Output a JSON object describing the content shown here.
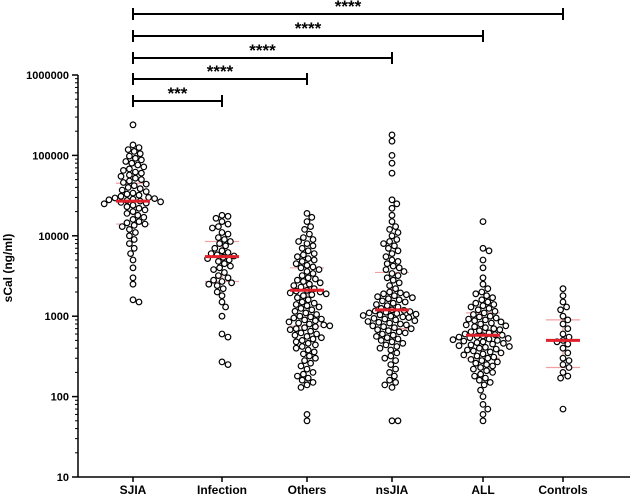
{
  "chart_data": {
    "type": "scatter",
    "ylabel": "sCal (ng/ml)",
    "yscale": "log",
    "ylim": [
      10,
      1000000
    ],
    "yticks": [
      {
        "value": 10,
        "label": "10"
      },
      {
        "value": 100,
        "label": "100"
      },
      {
        "value": 1000,
        "label": "1000"
      },
      {
        "value": 10000,
        "label": "10000"
      },
      {
        "value": 100000,
        "label": "100000"
      },
      {
        "value": 1000000,
        "label": "1000000"
      }
    ],
    "categories": [
      "SJIA",
      "Infection",
      "Others",
      "nsJIA",
      "ALL",
      "Controls"
    ],
    "colors": {
      "points": "#000000",
      "median": "#e0202a",
      "iqr": "#f0a0a0",
      "brackets": "#000000"
    },
    "series": [
      {
        "category": "SJIA",
        "median": 27000,
        "q1": 14000,
        "q3": 45000,
        "values": [
          240000,
          135000,
          125000,
          118000,
          112000,
          105000,
          98000,
          92000,
          88000,
          84000,
          80000,
          76000,
          72000,
          68000,
          65000,
          62000,
          60000,
          57000,
          55000,
          52000,
          50000,
          48000,
          46000,
          44000,
          42000,
          40000,
          38500,
          37000,
          35500,
          34000,
          33000,
          32000,
          31000,
          30000,
          29500,
          29000,
          28500,
          28000,
          27500,
          27000,
          26500,
          26000,
          25500,
          25000,
          24000,
          23000,
          22000,
          21000,
          20000,
          19000,
          18000,
          17000,
          16000,
          15000,
          14500,
          14000,
          13500,
          13000,
          12000,
          11000,
          10000,
          9000,
          8000,
          7000,
          6000,
          5000,
          4000,
          3000,
          2500,
          1600,
          1500
        ]
      },
      {
        "category": "Infection",
        "median": 5500,
        "q1": 2700,
        "q3": 8500,
        "values": [
          18000,
          17500,
          16500,
          15000,
          14000,
          13000,
          12500,
          11000,
          10500,
          9500,
          9000,
          8500,
          8000,
          7500,
          7000,
          6500,
          6200,
          6000,
          5800,
          5600,
          5400,
          5200,
          5000,
          4800,
          4500,
          4200,
          4000,
          3800,
          3500,
          3200,
          3000,
          2800,
          2700,
          2600,
          2500,
          2400,
          2200,
          2000,
          1800,
          1500,
          1300,
          1000,
          600,
          550,
          270,
          250
        ]
      },
      {
        "category": "Others",
        "median": 2100,
        "q1": 750,
        "q3": 4000,
        "values": [
          19000,
          17000,
          15000,
          13000,
          12000,
          10500,
          9500,
          9000,
          8500,
          8000,
          7500,
          7000,
          6500,
          6000,
          5800,
          5500,
          5200,
          5000,
          4800,
          4500,
          4300,
          4100,
          4000,
          3800,
          3600,
          3400,
          3200,
          3000,
          2900,
          2800,
          2700,
          2600,
          2500,
          2400,
          2300,
          2200,
          2100,
          2050,
          2000,
          1950,
          1900,
          1850,
          1800,
          1700,
          1600,
          1500,
          1450,
          1400,
          1350,
          1300,
          1250,
          1200,
          1150,
          1100,
          1050,
          1000,
          980,
          950,
          920,
          900,
          880,
          850,
          820,
          800,
          780,
          760,
          740,
          720,
          700,
          680,
          650,
          620,
          600,
          580,
          560,
          540,
          520,
          500,
          480,
          460,
          440,
          420,
          400,
          380,
          360,
          340,
          320,
          300,
          280,
          260,
          240,
          220,
          200,
          190,
          180,
          170,
          160,
          150,
          140,
          130,
          60,
          50
        ]
      },
      {
        "category": "nsJIA",
        "median": 1200,
        "q1": 700,
        "q3": 3500,
        "values": [
          180000,
          150000,
          100000,
          80000,
          60000,
          28000,
          25000,
          22000,
          18000,
          15000,
          13000,
          12000,
          11000,
          10000,
          9000,
          8500,
          8000,
          7500,
          7000,
          6500,
          6000,
          5500,
          5000,
          4800,
          4500,
          4200,
          4000,
          3800,
          3600,
          3400,
          3200,
          3000,
          2800,
          2600,
          2400,
          2200,
          2000,
          1950,
          1900,
          1850,
          1800,
          1750,
          1700,
          1650,
          1600,
          1550,
          1500,
          1450,
          1400,
          1350,
          1300,
          1250,
          1200,
          1180,
          1160,
          1140,
          1120,
          1100,
          1080,
          1060,
          1040,
          1020,
          1000,
          980,
          960,
          940,
          920,
          900,
          880,
          860,
          840,
          820,
          800,
          780,
          760,
          740,
          720,
          700,
          680,
          660,
          640,
          620,
          600,
          580,
          560,
          540,
          520,
          500,
          480,
          460,
          440,
          420,
          400,
          380,
          350,
          320,
          300,
          280,
          250,
          220,
          200,
          180,
          160,
          150,
          140,
          130,
          50,
          50
        ]
      },
      {
        "category": "ALL",
        "median": 580,
        "q1": 300,
        "q3": 1100,
        "values": [
          15000,
          7000,
          6500,
          5000,
          4000,
          3000,
          2500,
          2200,
          2000,
          1900,
          1800,
          1700,
          1600,
          1500,
          1450,
          1400,
          1350,
          1300,
          1250,
          1200,
          1150,
          1100,
          1050,
          1000,
          980,
          950,
          920,
          900,
          880,
          850,
          820,
          800,
          780,
          760,
          740,
          720,
          700,
          680,
          660,
          640,
          620,
          600,
          590,
          580,
          570,
          560,
          550,
          540,
          530,
          520,
          510,
          500,
          490,
          480,
          470,
          460,
          450,
          440,
          430,
          420,
          410,
          400,
          390,
          380,
          370,
          360,
          350,
          340,
          330,
          320,
          310,
          300,
          290,
          280,
          270,
          260,
          250,
          240,
          230,
          220,
          210,
          200,
          190,
          180,
          170,
          160,
          150,
          140,
          120,
          100,
          80,
          70,
          60,
          50
        ]
      },
      {
        "category": "Controls",
        "median": 500,
        "q1": 230,
        "q3": 900,
        "values": [
          2200,
          1800,
          1500,
          1300,
          1200,
          1000,
          900,
          800,
          700,
          600,
          550,
          500,
          480,
          450,
          400,
          350,
          300,
          280,
          250,
          230,
          200,
          180,
          170,
          70
        ]
      }
    ],
    "comparisons": [
      {
        "from": "SJIA",
        "to": "Infection",
        "label": "***"
      },
      {
        "from": "SJIA",
        "to": "Others",
        "label": "****"
      },
      {
        "from": "SJIA",
        "to": "nsJIA",
        "label": "****"
      },
      {
        "from": "SJIA",
        "to": "ALL",
        "label": "****"
      },
      {
        "from": "SJIA",
        "to": "Controls",
        "label": "****"
      }
    ]
  }
}
